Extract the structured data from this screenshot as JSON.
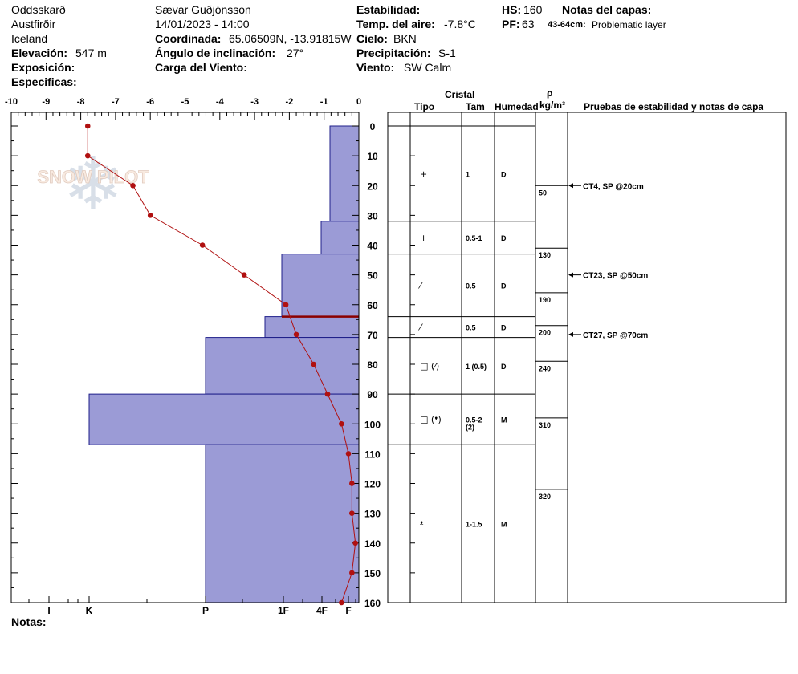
{
  "header": {
    "location": "Oddsskarð",
    "region": "Austfirðir",
    "country": "Iceland",
    "elevation_label": "Elevación:",
    "elevation_value": "547 m",
    "exposure_label": "Exposición:",
    "specifics_label": "Especificas:",
    "observer": "Sævar Guðjónsson",
    "datetime": "14/01/2023 - 14:00",
    "coord_label": "Coordinada:",
    "coord_value": "65.06509N, -13.91815W",
    "angle_label": "Ángulo de inclinación:",
    "angle_value": "27°",
    "wind_load_label": "Carga del Viento:",
    "stability_label": "Estabilidad:",
    "air_temp_label": "Temp. del aire:",
    "air_temp_value": "-7.8°C",
    "sky_label": "Cielo:",
    "sky_value": "BKN",
    "precip_label": "Precipitación:",
    "precip_value": "S-1",
    "wind_label": "Viento:",
    "wind_value": "SW Calm",
    "hs_label": "HS:",
    "hs_value": "160",
    "pf_label": "PF:",
    "pf_value": "63",
    "notes_layers_label": "Notas del capas:",
    "layer_note_range": "43-64cm:",
    "layer_note_text": "Problematic layer"
  },
  "watermark": "SNOW PILOT",
  "notes_label": "Notas:",
  "columns": {
    "crystal": "Cristal",
    "type": "Tipo",
    "size": "Tam",
    "moisture": "Humedad",
    "rho": "ρ",
    "density_unit": "kg/m³",
    "tests": "Pruebas de estabilidad y notas de capa"
  },
  "chart_data": {
    "type": "line",
    "title": "",
    "temp_axis_ticks": [
      "-10",
      "-9",
      "-8",
      "-7",
      "-6",
      "-5",
      "-4",
      "-3",
      "-2",
      "-1",
      "0"
    ],
    "temp_range": [
      -10,
      0
    ],
    "depth_range": [
      0,
      160
    ],
    "depth_ticks": [
      "0",
      "10",
      "20",
      "30",
      "40",
      "50",
      "60",
      "70",
      "80",
      "90",
      "100",
      "110",
      "120",
      "130",
      "140",
      "150",
      "160"
    ],
    "hardness_labels": [
      "I",
      "K",
      "P",
      "1F",
      "4F",
      "F"
    ],
    "temperature_profile": [
      {
        "depth": 0,
        "temp": -7.8
      },
      {
        "depth": 10,
        "temp": -7.8
      },
      {
        "depth": 20,
        "temp": -6.5
      },
      {
        "depth": 30,
        "temp": -6.0
      },
      {
        "depth": 40,
        "temp": -4.5
      },
      {
        "depth": 50,
        "temp": -3.3
      },
      {
        "depth": 60,
        "temp": -2.1
      },
      {
        "depth": 70,
        "temp": -1.8
      },
      {
        "depth": 80,
        "temp": -1.3
      },
      {
        "depth": 90,
        "temp": -0.9
      },
      {
        "depth": 100,
        "temp": -0.5
      },
      {
        "depth": 110,
        "temp": -0.3
      },
      {
        "depth": 120,
        "temp": -0.2
      },
      {
        "depth": 130,
        "temp": -0.2
      },
      {
        "depth": 140,
        "temp": -0.1
      },
      {
        "depth": 150,
        "temp": -0.2
      },
      {
        "depth": 160,
        "temp": -0.5
      }
    ],
    "hardness_bars": [
      {
        "from": 0,
        "to": 32,
        "hardness": "F+"
      },
      {
        "from": 32,
        "to": 43,
        "hardness": "4F-"
      },
      {
        "from": 43,
        "to": 64,
        "hardness": "1F"
      },
      {
        "from": 64,
        "to": 71,
        "hardness": "1F+"
      },
      {
        "from": 71,
        "to": 90,
        "hardness": "P"
      },
      {
        "from": 90,
        "to": 107,
        "hardness": "K"
      },
      {
        "from": 107,
        "to": 160,
        "hardness": "P"
      }
    ],
    "problem_layer_depth": 64,
    "layers": [
      {
        "from": 0,
        "to": 32,
        "type": "+",
        "size": "1",
        "moisture": "D"
      },
      {
        "from": 32,
        "to": 43,
        "type": "+",
        "size": "0.5-1",
        "moisture": "D"
      },
      {
        "from": 43,
        "to": 64,
        "type": "⁄",
        "size": "0.5",
        "moisture": "D"
      },
      {
        "from": 64,
        "to": 71,
        "type": "⁄",
        "size": "0.5",
        "moisture": "D"
      },
      {
        "from": 71,
        "to": 90,
        "type": "□ (⁄)",
        "size": "1 (0.5)",
        "moisture": "D"
      },
      {
        "from": 90,
        "to": 107,
        "type": "□ (ᵜ)",
        "size": "0.5-2",
        "size2": "(2)",
        "moisture": "M"
      },
      {
        "from": 107,
        "to": 160,
        "type": "ᵜ",
        "size": "1-1.5",
        "moisture": "M"
      }
    ],
    "densities": [
      {
        "depth": 20,
        "value": "50"
      },
      {
        "depth": 41,
        "value": "130"
      },
      {
        "depth": 56,
        "value": "190"
      },
      {
        "depth": 67,
        "value": "200"
      },
      {
        "depth": 79,
        "value": "240"
      },
      {
        "depth": 98,
        "value": "310"
      },
      {
        "depth": 122,
        "value": "320"
      }
    ],
    "tests": [
      {
        "depth": 20,
        "text": "CT4, SP @20cm"
      },
      {
        "depth": 50,
        "text": "CT23, SP @50cm"
      },
      {
        "depth": 70,
        "text": "CT27, SP @70cm"
      }
    ]
  },
  "colors": {
    "bar_fill": "#9b9bd6",
    "bar_stroke": "#1f1f8a",
    "temp_line": "#b01010",
    "problem_line": "#8b0000"
  }
}
